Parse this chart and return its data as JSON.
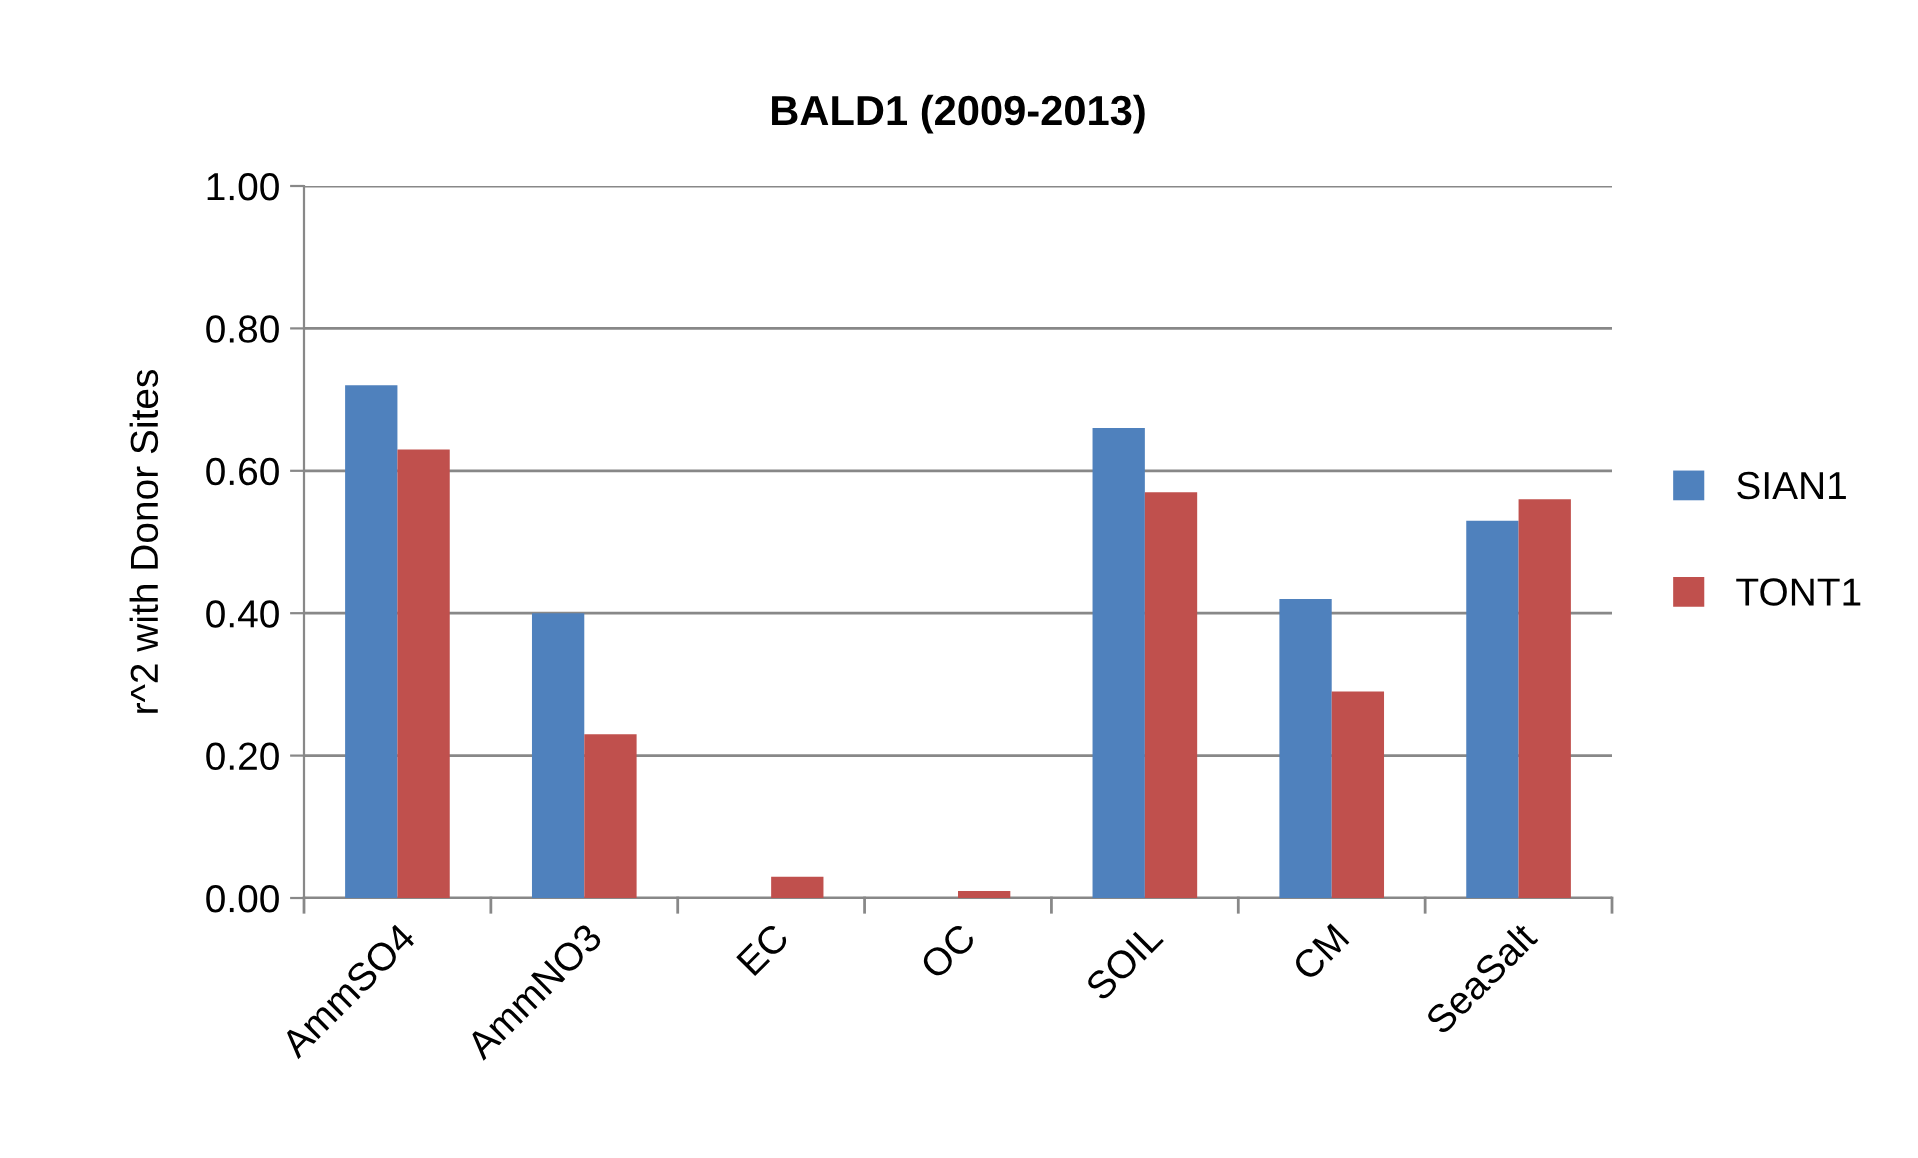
{
  "chart_data": {
    "type": "bar",
    "title": "BALD1 (2009-2013)",
    "ylabel": "r^2 with Donor Sites",
    "categories": [
      "AmmSO4",
      "AmmNO3",
      "EC",
      "OC",
      "SOIL",
      "CM",
      "SeaSalt"
    ],
    "series": [
      {
        "name": "SIAN1",
        "color": "#4f81bd",
        "values": [
          0.72,
          0.4,
          0.0,
          0.0,
          0.66,
          0.42,
          0.53
        ]
      },
      {
        "name": "TONT1",
        "color": "#c0504d",
        "values": [
          0.63,
          0.23,
          0.03,
          0.01,
          0.57,
          0.29,
          0.56
        ]
      }
    ],
    "ylim": [
      0,
      1
    ],
    "yticks": [
      {
        "value": 0,
        "label": "0.00"
      },
      {
        "value": 0.2,
        "label": "0.20"
      },
      {
        "value": 0.4,
        "label": "0.40"
      },
      {
        "value": 0.6,
        "label": "0.60"
      },
      {
        "value": 0.8,
        "label": "0.80"
      },
      {
        "value": 1,
        "label": "1.00"
      }
    ],
    "grid": "y",
    "legend": "right"
  }
}
